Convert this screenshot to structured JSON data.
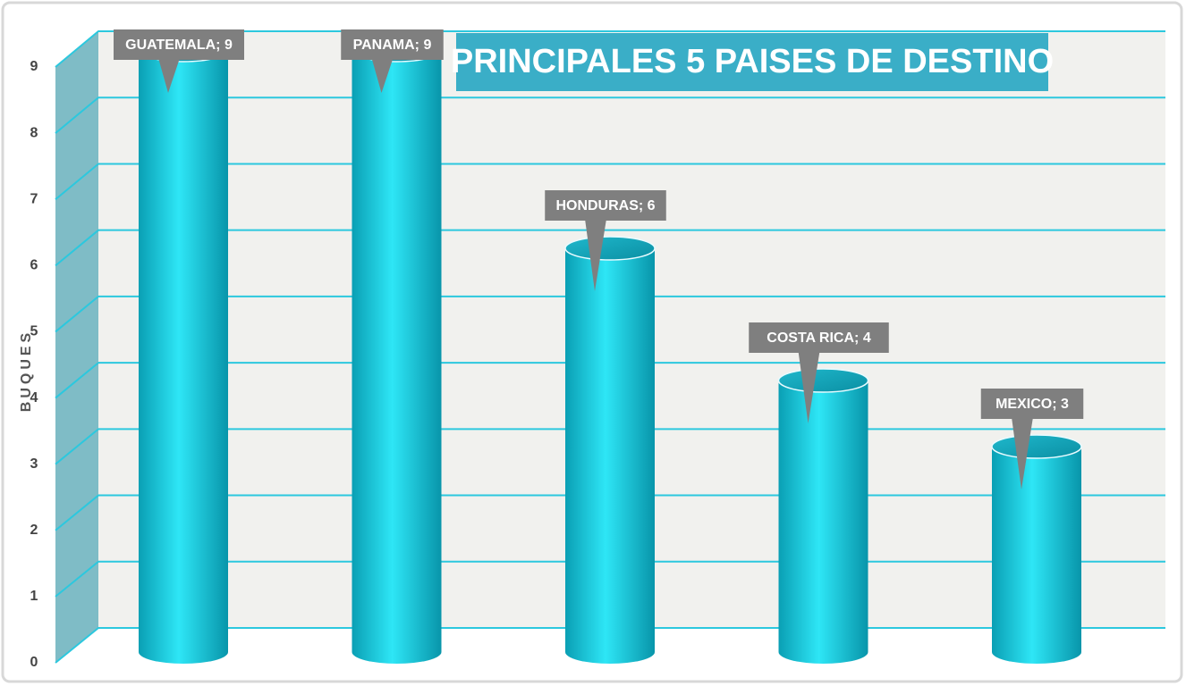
{
  "chart_data": {
    "type": "bar",
    "title": "PRINCIPALES 5 PAISES DE DESTINO",
    "y_label": "BUQUES",
    "values": [
      9,
      9,
      6,
      4,
      3
    ],
    "value_labels": [
      "GUATEMALA; 9",
      "PANAMA; 9",
      "HONDURAS; 6",
      "COSTA RICA; 4",
      "MEXICO; 3"
    ],
    "color": "#19cfe3",
    "ylim": [
      0,
      9
    ],
    "yticks": [
      0,
      1,
      2,
      3,
      4,
      5,
      6,
      7,
      8,
      9
    ],
    "grid": true
  }
}
